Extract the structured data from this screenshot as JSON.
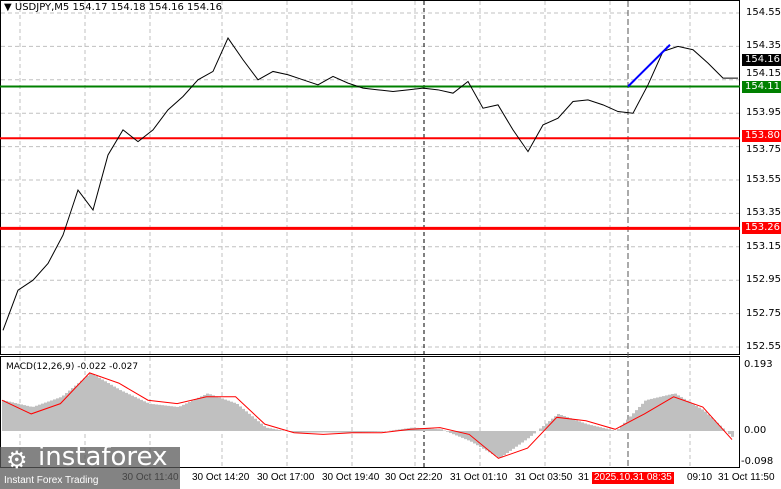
{
  "header": {
    "symbol": "USDJPY,M5",
    "ohlc": "154.17 154.18 154.16 154.16"
  },
  "price_axis": [
    "154.55",
    "154.35",
    "154.15",
    "153.95",
    "153.75",
    "153.55",
    "153.35",
    "153.15",
    "152.95",
    "152.75",
    "152.55"
  ],
  "levels": [
    {
      "value": "154.11",
      "color": "#008000"
    },
    {
      "value": "153.80",
      "color": "#ff0000"
    },
    {
      "value": "153.26",
      "color": "#ff0000"
    }
  ],
  "current_price": "154.16",
  "macd": {
    "label": "MACD(12,26,9) -0.022 -0.027",
    "axis": [
      "0.193",
      "0.00",
      "-0.098"
    ],
    "main": [
      0.09,
      0.07,
      0.1,
      0.17,
      0.12,
      0.08,
      0.07,
      0.11,
      0.08,
      0.01,
      -0.005,
      -0.004,
      -0.005,
      -0.002,
      0.01,
      0.005,
      -0.03,
      -0.08,
      -0.02,
      0.05,
      0.02,
      0.0,
      0.09,
      0.11,
      0.06,
      -0.02
    ],
    "signal": [
      0.09,
      0.05,
      0.08,
      0.17,
      0.14,
      0.09,
      0.08,
      0.1,
      0.1,
      0.02,
      -0.005,
      -0.01,
      -0.005,
      -0.005,
      0.005,
      0.01,
      -0.01,
      -0.08,
      -0.05,
      0.04,
      0.03,
      0.005,
      0.05,
      0.1,
      0.07,
      -0.025
    ]
  },
  "prices": [
    152.65,
    152.89,
    152.95,
    153.05,
    153.22,
    153.49,
    153.37,
    153.7,
    153.85,
    153.78,
    153.85,
    153.97,
    154.05,
    154.15,
    154.2,
    154.4,
    154.27,
    154.15,
    154.2,
    154.18,
    154.15,
    154.12,
    154.17,
    154.13,
    154.1,
    154.09,
    154.08,
    154.09,
    154.1,
    154.09,
    154.07,
    154.14,
    153.98,
    154.0,
    153.85,
    153.72,
    153.88,
    153.92,
    154.02,
    154.03,
    154.0,
    153.96,
    153.95,
    154.12,
    154.32,
    154.35,
    154.33,
    154.25,
    154.16,
    154.16
  ],
  "time_axis": [
    "30 Oct 11:40",
    "30 Oct 14:20",
    "30 Oct 17:00",
    "30 Oct 19:40",
    "30 Oct 22:20",
    "31 Oct 01:10",
    "31 Oct 03:50",
    "31",
    "09:10",
    "31 Oct 11:50"
  ],
  "highlight_time": "2025.10.31 08:35",
  "logo": {
    "name": "instaforex",
    "tagline": "Instant Forex Trading"
  }
}
